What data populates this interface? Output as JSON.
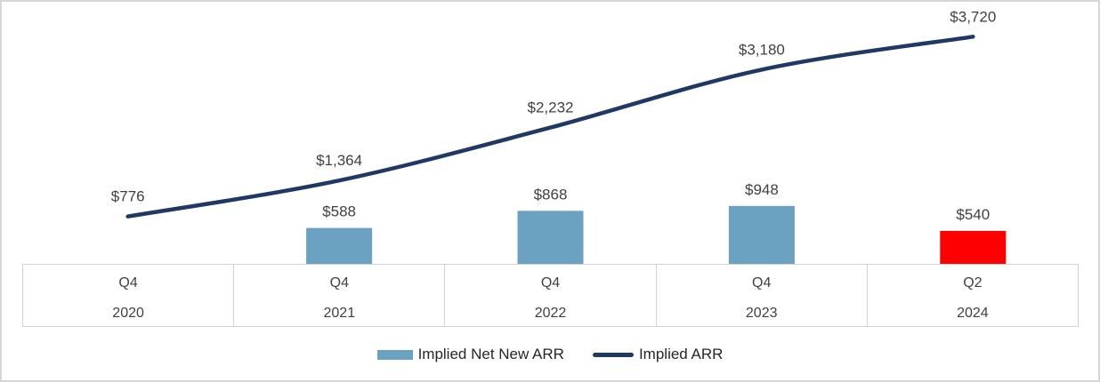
{
  "chart_data": {
    "type": "combo",
    "categories": [
      {
        "quarter": "Q4",
        "year": "2020"
      },
      {
        "quarter": "Q4",
        "year": "2021"
      },
      {
        "quarter": "Q4",
        "year": "2022"
      },
      {
        "quarter": "Q4",
        "year": "2023"
      },
      {
        "quarter": "Q2",
        "year": "2024"
      }
    ],
    "series": [
      {
        "name": "Implied Net New ARR",
        "type": "bar",
        "values": [
          null,
          588,
          868,
          948,
          540
        ],
        "labels": [
          null,
          "$588",
          "$868",
          "$948",
          "$540"
        ],
        "color": "#6BA2C2",
        "point_colors": [
          null,
          null,
          null,
          null,
          "#FF0000"
        ]
      },
      {
        "name": "Implied ARR",
        "type": "line",
        "smooth": true,
        "values": [
          776,
          1364,
          2232,
          3180,
          3720
        ],
        "labels": [
          "$776",
          "$1,364",
          "$2,232",
          "$3,180",
          "$3,720"
        ],
        "color": "#1F3864"
      }
    ],
    "ylim": [
      0,
      4320
    ],
    "grid": false,
    "legend_position": "bottom"
  },
  "colors": {
    "bar_blue": "#6BA2C2",
    "bar_highlight_red": "#FF0000",
    "line_navy": "#1F3864",
    "data_label_text": "#404040",
    "axis_text": "#404040",
    "legend_text": "#262626",
    "axis_border": "#D2D2D2",
    "frame_border": "#D6D6D6",
    "background": "#FFFFFF"
  }
}
